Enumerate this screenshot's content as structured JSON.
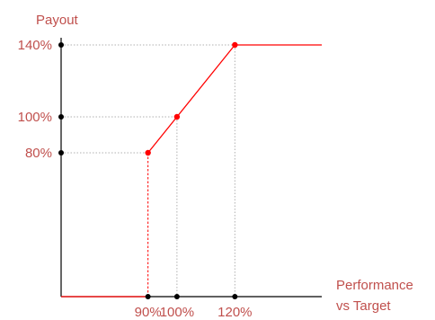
{
  "chart_data": {
    "type": "line",
    "ylabel": "Payout",
    "xlabel_lines": [
      "Performance",
      "vs Target"
    ],
    "x_ticks": [
      {
        "value": 90,
        "label": "90%"
      },
      {
        "value": 100,
        "label": "100%"
      },
      {
        "value": 120,
        "label": "120%"
      }
    ],
    "y_ticks": [
      {
        "value": 80,
        "label": "80%"
      },
      {
        "value": 100,
        "label": "100%"
      },
      {
        "value": 140,
        "label": "140%"
      }
    ],
    "series": [
      {
        "points": [
          {
            "x": 60,
            "y": 0
          },
          {
            "x": 90,
            "y": 0
          },
          {
            "x": 90,
            "y": 80
          },
          {
            "x": 100,
            "y": 100
          },
          {
            "x": 120,
            "y": 140
          },
          {
            "x": 150,
            "y": 140
          }
        ],
        "markers": [
          {
            "x": 90,
            "y": 80
          },
          {
            "x": 100,
            "y": 100
          },
          {
            "x": 120,
            "y": 140
          }
        ]
      }
    ],
    "xlim": [
      60,
      150
    ],
    "ylim": [
      0,
      140
    ],
    "grid": "dotted guide lines from axes to key points",
    "colors": {
      "line": "#ff0000",
      "label": "#c0504d",
      "axis": "#000000",
      "guide": "#b0b0b0"
    }
  }
}
